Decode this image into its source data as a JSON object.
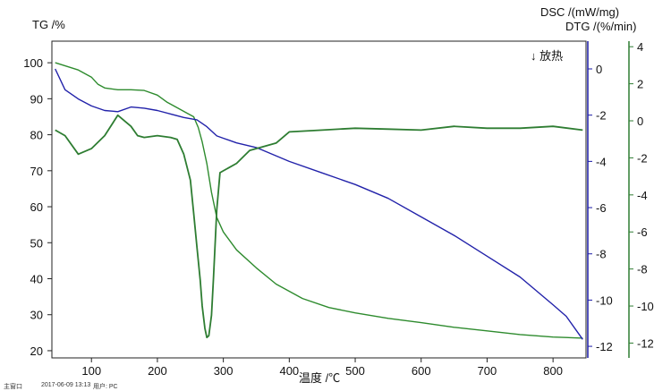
{
  "chart_data": {
    "type": "line",
    "xlabel": "温度 /℃",
    "x_ticks": [
      100,
      200,
      300,
      400,
      500,
      600,
      700,
      800
    ],
    "xlim": [
      40,
      850
    ],
    "axes": {
      "tg": {
        "label": "TG /%",
        "ticks": [
          20,
          30,
          40,
          50,
          60,
          70,
          80,
          90,
          100
        ],
        "range": [
          18,
          106
        ],
        "color": "#111111"
      },
      "dsc": {
        "label": "DSC /(mW/mg)",
        "ticks": [
          0,
          -2,
          -4,
          -6,
          -8,
          -10,
          -12
        ],
        "range": [
          -12.5,
          1.2
        ],
        "color": "#1a1aa6"
      },
      "dtg": {
        "label": "DTG /(%/min)",
        "ticks": [
          4,
          2,
          0,
          -2,
          -4,
          -6,
          -8,
          -10,
          -12
        ],
        "range": [
          -12.8,
          4.3
        ],
        "color": "#2e7d32"
      }
    },
    "annotation": "↓ 放热",
    "series": [
      {
        "axis": "tg",
        "color": "#2e8b2e",
        "x": [
          45,
          80,
          100,
          110,
          120,
          140,
          160,
          180,
          200,
          215,
          230,
          245,
          255,
          262,
          268,
          275,
          282,
          290,
          300,
          320,
          350,
          380,
          420,
          460,
          500,
          550,
          600,
          650,
          700,
          750,
          800,
          845
        ],
        "y": [
          100,
          98,
          96,
          94,
          93,
          92.5,
          92.5,
          92.3,
          91,
          89,
          87.5,
          86,
          85,
          82,
          78,
          72,
          64,
          57,
          53,
          48,
          43,
          38.5,
          34.5,
          32,
          30.5,
          29,
          27.8,
          26.5,
          25.5,
          24.5,
          23.8,
          23.5
        ]
      },
      {
        "axis": "dsc",
        "color": "#2222aa",
        "x": [
          45,
          60,
          80,
          100,
          120,
          140,
          160,
          180,
          200,
          220,
          240,
          260,
          275,
          290,
          300,
          320,
          350,
          400,
          450,
          500,
          550,
          600,
          650,
          700,
          750,
          800,
          820,
          845
        ],
        "y": [
          0.0,
          -0.9,
          -1.3,
          -1.6,
          -1.8,
          -1.85,
          -1.65,
          -1.7,
          -1.8,
          -1.95,
          -2.1,
          -2.2,
          -2.5,
          -2.9,
          -3.0,
          -3.2,
          -3.4,
          -4.0,
          -4.5,
          -5.0,
          -5.6,
          -6.4,
          -7.2,
          -8.1,
          -9.0,
          -10.2,
          -10.7,
          -11.7
        ]
      },
      {
        "axis": "dtg",
        "color": "#2e7d32",
        "x": [
          45,
          60,
          80,
          100,
          120,
          140,
          160,
          170,
          180,
          200,
          220,
          230,
          240,
          250,
          255,
          260,
          265,
          268,
          272,
          275,
          278,
          282,
          285,
          290,
          295,
          300,
          320,
          340,
          360,
          380,
          400,
          450,
          500,
          550,
          600,
          650,
          700,
          750,
          800,
          845
        ],
        "y": [
          -0.5,
          -0.8,
          -1.8,
          -1.5,
          -0.8,
          0.3,
          -0.3,
          -0.8,
          -0.9,
          -0.8,
          -0.9,
          -1.0,
          -1.8,
          -3.2,
          -5.0,
          -6.8,
          -8.6,
          -10.0,
          -11.2,
          -11.7,
          -11.6,
          -10.5,
          -8.5,
          -4.8,
          -2.8,
          -2.7,
          -2.3,
          -1.6,
          -1.4,
          -1.2,
          -0.6,
          -0.5,
          -0.4,
          -0.45,
          -0.5,
          -0.3,
          -0.4,
          -0.4,
          -0.3,
          -0.5
        ]
      }
    ]
  },
  "footer": {
    "left": "主窗口",
    "date": "2017-06-09 13:13",
    "user": "用户: PC"
  }
}
